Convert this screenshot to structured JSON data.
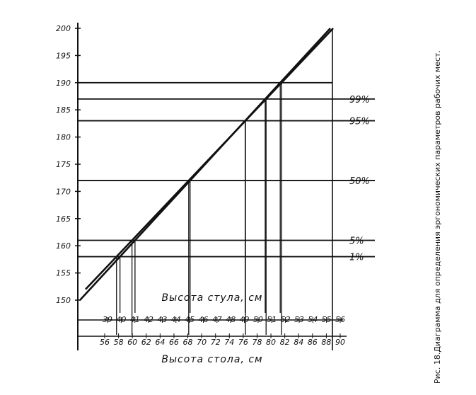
{
  "caption": "Рис. 18.Диаграмма для определения эргономических параметров рабочих мест.",
  "chart_data": {
    "type": "line",
    "y_tick_labels": [
      "150",
      "155",
      "160",
      "165",
      "170",
      "175",
      "180",
      "185",
      "190",
      "195",
      "200"
    ],
    "chair_axis_title": "Высота стула, см",
    "chair_tick_labels": [
      "39",
      "40",
      "41",
      "42",
      "43",
      "44",
      "45",
      "46",
      "47",
      "48",
      "49",
      "50",
      "51",
      "52",
      "53",
      "54",
      "55",
      "56"
    ],
    "table_axis_title": "Высота стола, см",
    "table_tick_labels": [
      "56",
      "58",
      "60",
      "62",
      "64",
      "66",
      "68",
      "70",
      "72",
      "74",
      "76",
      "78",
      "80",
      "82",
      "84",
      "86",
      "88",
      "90"
    ],
    "ylim": [
      150,
      200
    ],
    "percentile_lines": [
      {
        "label": "1%",
        "value": 158
      },
      {
        "label": "5%",
        "value": 161
      },
      {
        "label": "50%",
        "value": 172
      },
      {
        "label": "95%",
        "value": 183
      },
      {
        "label": "99%",
        "value": 187
      }
    ],
    "extra_horizontal_line": 190,
    "chair_line": {
      "x": [
        39,
        56
      ],
      "y": [
        150,
        200
      ]
    },
    "table_line": {
      "x": [
        56,
        90
      ],
      "y": [
        152,
        200
      ]
    },
    "drop_lines": [
      {
        "y": 158,
        "chair": 39.7,
        "table": 56.7
      },
      {
        "y": 161,
        "chair": 40.7,
        "table": 60.6
      },
      {
        "y": 172,
        "chair": 44.8,
        "table": 67.8
      },
      {
        "y": 183,
        "chair": 48.6,
        "table": 75.6
      },
      {
        "y": 187,
        "chair": 50.9,
        "table": 79.0
      },
      {
        "y": 190,
        "chair": 51.7,
        "table": 81.8
      }
    ]
  }
}
